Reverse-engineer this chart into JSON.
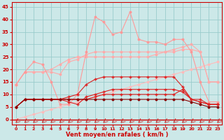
{
  "xlabel": "Vent moyen/en rafales ( km/h )",
  "background_color": "#cce8e8",
  "grid_color": "#99cccc",
  "x": [
    0,
    1,
    2,
    3,
    4,
    5,
    6,
    7,
    8,
    9,
    10,
    11,
    12,
    13,
    14,
    15,
    16,
    17,
    18,
    19,
    20,
    21,
    22,
    23
  ],
  "ylim": [
    -2,
    47
  ],
  "xlim": [
    -0.5,
    23.5
  ],
  "yticks": [
    0,
    5,
    10,
    15,
    20,
    25,
    30,
    35,
    40,
    45
  ],
  "line_light1_color": "#ffaaaa",
  "line_light1_y": [
    14,
    19,
    19,
    19,
    19,
    18,
    23,
    24,
    26,
    27,
    27,
    27,
    27,
    27,
    27,
    27,
    27,
    27,
    27,
    28,
    28,
    27,
    15,
    15
  ],
  "line_light2_color": "#ffaaaa",
  "line_light2_y": [
    14,
    19,
    19,
    19,
    20,
    22,
    24,
    25,
    25,
    25,
    25,
    25,
    25,
    25,
    25,
    25,
    26,
    27,
    28,
    29,
    30,
    27,
    15,
    15
  ],
  "line_peak_color": "#ff9999",
  "line_peak_y": [
    14,
    19,
    23,
    22,
    15,
    6,
    6,
    10,
    27,
    41,
    39,
    34,
    35,
    43,
    32,
    31,
    31,
    30,
    32,
    32,
    27,
    15,
    7,
    7
  ],
  "line_flat_color": "#ffbbbb",
  "line_red1_color": "#dd2222",
  "line_red1_y": [
    5,
    8,
    8,
    8,
    8,
    8,
    9,
    10,
    14,
    16,
    17,
    17,
    17,
    17,
    17,
    17,
    17,
    17,
    17,
    13,
    8,
    8,
    6,
    6
  ],
  "line_red2_color": "#dd2222",
  "line_red2_y": [
    5,
    8,
    8,
    8,
    8,
    8,
    7,
    6,
    9,
    10,
    11,
    12,
    12,
    12,
    12,
    12,
    12,
    12,
    12,
    11,
    8,
    7,
    6,
    6
  ],
  "line_red3_color": "#dd2222",
  "line_red3_y": [
    5,
    8,
    8,
    8,
    8,
    8,
    8,
    8,
    8,
    9,
    10,
    10,
    10,
    10,
    10,
    10,
    10,
    10,
    10,
    12,
    8,
    7,
    6,
    6
  ],
  "line_dark_color": "#880000",
  "line_dark_y": [
    5,
    8,
    8,
    8,
    8,
    8,
    8,
    8,
    8,
    8,
    8,
    8,
    8,
    8,
    8,
    8,
    8,
    8,
    8,
    8,
    7,
    6,
    5,
    5
  ],
  "arrow_color": "#cc0000",
  "tick_color": "#cc0000",
  "axis_color": "#cc0000",
  "xlabel_color": "#cc0000"
}
